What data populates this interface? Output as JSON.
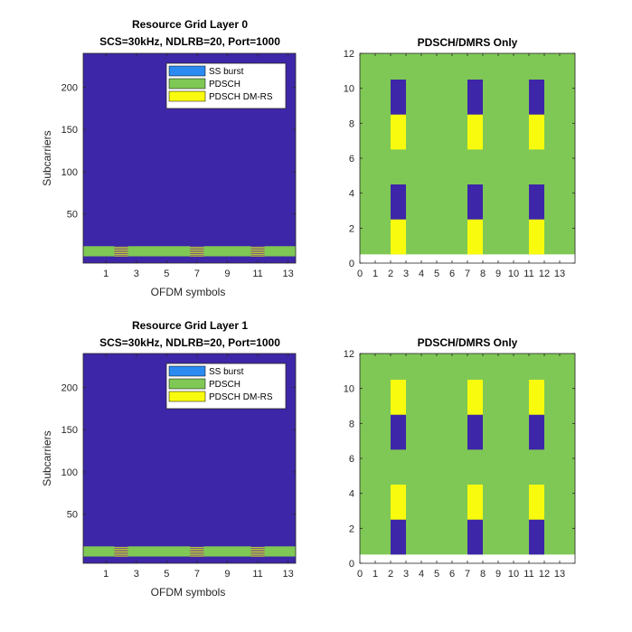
{
  "colors": {
    "empty": "#3e26a8",
    "ss_burst": "#2c8bf0",
    "pdsch": "#7fc855",
    "pdsch_dmrs": "#f9fb0e",
    "axis": "#262626",
    "background": "#ffffff"
  },
  "legend": {
    "entries": [
      "SS burst",
      "PDSCH",
      "PDSCH DM-RS"
    ],
    "placement": "top-right"
  },
  "chart_data": [
    {
      "type": "heatmap",
      "title": "Resource Grid Layer 0",
      "subtitle": "SCS=30kHz, NDLRB=20, Port=1000",
      "xlabel": "OFDM symbols",
      "ylabel": "Subcarriers",
      "xlim": [
        0,
        14
      ],
      "ylim": [
        0,
        240
      ],
      "xticks": [
        1,
        3,
        5,
        7,
        9,
        11,
        13
      ],
      "yticks": [
        50,
        100,
        150,
        200
      ],
      "grid": false,
      "background_value": "empty",
      "pdsch_subcarriers": [
        0,
        12
      ],
      "pdsch_symbols": [
        0,
        14
      ],
      "dmrs_symbols": [
        2,
        7,
        11
      ],
      "dmrs_subcarriers": [
        0,
        1,
        2,
        3,
        4,
        5,
        6,
        7,
        8,
        9,
        10,
        11
      ],
      "dmrs_pattern": "alternating"
    },
    {
      "type": "heatmap",
      "title": "PDSCH/DMRS Only",
      "xlim": [
        0,
        14
      ],
      "ylim": [
        0,
        12
      ],
      "xticks": [
        0,
        1,
        2,
        3,
        4,
        5,
        6,
        7,
        8,
        9,
        10,
        11,
        12,
        13
      ],
      "yticks": [
        0,
        2,
        4,
        6,
        8,
        10,
        12
      ],
      "grid": false,
      "background": "pdsch",
      "cells": [
        {
          "symbol": 2,
          "from": 0.5,
          "to": 2.5,
          "value": "pdsch_dmrs"
        },
        {
          "symbol": 2,
          "from": 2.5,
          "to": 4.5,
          "value": "empty"
        },
        {
          "symbol": 2,
          "from": 6.5,
          "to": 8.5,
          "value": "pdsch_dmrs"
        },
        {
          "symbol": 2,
          "from": 8.5,
          "to": 10.5,
          "value": "empty"
        },
        {
          "symbol": 7,
          "from": 0.5,
          "to": 2.5,
          "value": "pdsch_dmrs"
        },
        {
          "symbol": 7,
          "from": 2.5,
          "to": 4.5,
          "value": "empty"
        },
        {
          "symbol": 7,
          "from": 6.5,
          "to": 8.5,
          "value": "pdsch_dmrs"
        },
        {
          "symbol": 7,
          "from": 8.5,
          "to": 10.5,
          "value": "empty"
        },
        {
          "symbol": 11,
          "from": 0.5,
          "to": 2.5,
          "value": "pdsch_dmrs"
        },
        {
          "symbol": 11,
          "from": 2.5,
          "to": 4.5,
          "value": "empty"
        },
        {
          "symbol": 11,
          "from": 6.5,
          "to": 8.5,
          "value": "pdsch_dmrs"
        },
        {
          "symbol": 11,
          "from": 8.5,
          "to": 10.5,
          "value": "empty"
        }
      ],
      "blank_band": [
        0,
        0.5
      ]
    },
    {
      "type": "heatmap",
      "title": "Resource Grid Layer 1",
      "subtitle": "SCS=30kHz, NDLRB=20, Port=1000",
      "xlabel": "OFDM symbols",
      "ylabel": "Subcarriers",
      "xlim": [
        0,
        14
      ],
      "ylim": [
        0,
        240
      ],
      "xticks": [
        1,
        3,
        5,
        7,
        9,
        11,
        13
      ],
      "yticks": [
        50,
        100,
        150,
        200
      ],
      "grid": false,
      "background_value": "empty",
      "pdsch_subcarriers": [
        0,
        12
      ],
      "pdsch_symbols": [
        0,
        14
      ],
      "dmrs_symbols": [
        2,
        7,
        11
      ],
      "dmrs_subcarriers": [
        0,
        1,
        2,
        3,
        4,
        5,
        6,
        7,
        8,
        9,
        10,
        11
      ],
      "dmrs_pattern": "alternating"
    },
    {
      "type": "heatmap",
      "title": "PDSCH/DMRS Only",
      "xlim": [
        0,
        14
      ],
      "ylim": [
        0,
        12
      ],
      "xticks": [
        0,
        1,
        2,
        3,
        4,
        5,
        6,
        7,
        8,
        9,
        10,
        11,
        12,
        13
      ],
      "yticks": [
        0,
        2,
        4,
        6,
        8,
        10,
        12
      ],
      "grid": false,
      "background": "pdsch",
      "cells": [
        {
          "symbol": 2,
          "from": 0.5,
          "to": 2.5,
          "value": "empty"
        },
        {
          "symbol": 2,
          "from": 2.5,
          "to": 4.5,
          "value": "pdsch_dmrs"
        },
        {
          "symbol": 2,
          "from": 6.5,
          "to": 8.5,
          "value": "empty"
        },
        {
          "symbol": 2,
          "from": 8.5,
          "to": 10.5,
          "value": "pdsch_dmrs"
        },
        {
          "symbol": 7,
          "from": 0.5,
          "to": 2.5,
          "value": "empty"
        },
        {
          "symbol": 7,
          "from": 2.5,
          "to": 4.5,
          "value": "pdsch_dmrs"
        },
        {
          "symbol": 7,
          "from": 6.5,
          "to": 8.5,
          "value": "empty"
        },
        {
          "symbol": 7,
          "from": 8.5,
          "to": 10.5,
          "value": "pdsch_dmrs"
        },
        {
          "symbol": 11,
          "from": 0.5,
          "to": 2.5,
          "value": "empty"
        },
        {
          "symbol": 11,
          "from": 2.5,
          "to": 4.5,
          "value": "pdsch_dmrs"
        },
        {
          "symbol": 11,
          "from": 6.5,
          "to": 8.5,
          "value": "empty"
        },
        {
          "symbol": 11,
          "from": 8.5,
          "to": 10.5,
          "value": "pdsch_dmrs"
        }
      ],
      "blank_band": [
        0,
        0.5
      ]
    }
  ]
}
